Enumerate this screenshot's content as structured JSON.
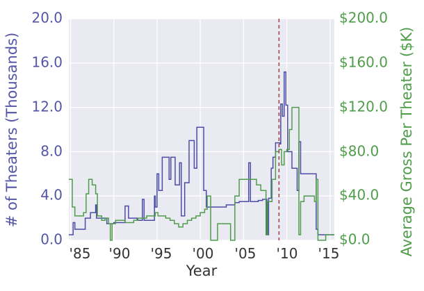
{
  "chart_data": {
    "type": "line",
    "xlabel": "Year",
    "ylabel_left": "# of Theaters (Thousands)",
    "ylabel_right": "Average Gross Per Theater ($K)",
    "xlim": [
      1984.8,
      2015.5
    ],
    "ylim_left": [
      0,
      20
    ],
    "ylim_right": [
      0,
      200
    ],
    "x_ticks": [
      1985,
      1990,
      1995,
      2000,
      2005,
      2010,
      2015
    ],
    "x_tick_labels": [
      "'85",
      "'90",
      "'95",
      "'00",
      "'05",
      "'10",
      "'15"
    ],
    "y_ticks_left": [
      0,
      4,
      8,
      12,
      16,
      20
    ],
    "y_tick_labels_left": [
      "0.0",
      "4.0",
      "8.0",
      "12.0",
      "16.0",
      "20.0"
    ],
    "y_ticks_right": [
      0,
      40,
      80,
      120,
      160,
      200
    ],
    "y_tick_labels_right": [
      "$0.0",
      "$40.0",
      "$80.0",
      "$120.0",
      "$160.0",
      "$200.0"
    ],
    "vline": {
      "x": 2009.1,
      "style": "dashed",
      "color": "#a0464b"
    },
    "series": [
      {
        "name": "# of Theaters (Thousands)",
        "axis": "left",
        "color": "#4c4ca6",
        "points": [
          [
            1984.8,
            0.5
          ],
          [
            1985.3,
            1.6
          ],
          [
            1985.5,
            1.0
          ],
          [
            1986.0,
            1.0
          ],
          [
            1986.5,
            1.0
          ],
          [
            1986.7,
            2.0
          ],
          [
            1987.0,
            2.0
          ],
          [
            1987.3,
            2.5
          ],
          [
            1987.7,
            2.5
          ],
          [
            1987.9,
            3.2
          ],
          [
            1988.0,
            2.0
          ],
          [
            1988.5,
            2.0
          ],
          [
            1988.9,
            2.0
          ],
          [
            1989.2,
            1.5
          ],
          [
            1989.7,
            1.5
          ],
          [
            1990.0,
            1.6
          ],
          [
            1990.5,
            1.6
          ],
          [
            1991.0,
            1.6
          ],
          [
            1991.3,
            3.1
          ],
          [
            1991.7,
            2.0
          ],
          [
            1992.2,
            2.0
          ],
          [
            1992.7,
            1.8
          ],
          [
            1993.1,
            1.8
          ],
          [
            1993.3,
            3.7
          ],
          [
            1993.5,
            1.8
          ],
          [
            1994.0,
            1.8
          ],
          [
            1994.5,
            1.8
          ],
          [
            1994.7,
            4.0
          ],
          [
            1994.8,
            3.0
          ],
          [
            1995.0,
            6.0
          ],
          [
            1995.2,
            4.5
          ],
          [
            1995.6,
            7.5
          ],
          [
            1996.2,
            7.5
          ],
          [
            1996.4,
            5.5
          ],
          [
            1996.6,
            7.5
          ],
          [
            1997.0,
            7.5
          ],
          [
            1997.1,
            5.0
          ],
          [
            1997.6,
            7.0
          ],
          [
            1997.8,
            2.2
          ],
          [
            1998.2,
            5.2
          ],
          [
            1998.5,
            5.2
          ],
          [
            1998.7,
            9.0
          ],
          [
            1999.0,
            9.0
          ],
          [
            1999.3,
            6.5
          ],
          [
            1999.6,
            10.2
          ],
          [
            2000.1,
            10.2
          ],
          [
            2000.4,
            4.5
          ],
          [
            2000.7,
            3.0
          ],
          [
            2001.2,
            3.0
          ],
          [
            2001.7,
            3.0
          ],
          [
            2002.3,
            3.0
          ],
          [
            2003.0,
            3.2
          ],
          [
            2003.5,
            3.2
          ],
          [
            2004.0,
            3.4
          ],
          [
            2004.5,
            3.5
          ],
          [
            2005.0,
            3.5
          ],
          [
            2005.4,
            3.5
          ],
          [
            2005.6,
            7.0
          ],
          [
            2005.8,
            3.5
          ],
          [
            2006.2,
            3.5
          ],
          [
            2006.7,
            3.6
          ],
          [
            2007.2,
            3.7
          ],
          [
            2007.5,
            3.7
          ],
          [
            2007.7,
            0.5
          ],
          [
            2007.9,
            3.8
          ],
          [
            2008.2,
            6.5
          ],
          [
            2008.4,
            7.5
          ],
          [
            2008.7,
            8.8
          ],
          [
            2009.2,
            8.7
          ],
          [
            2009.3,
            12.3
          ],
          [
            2009.5,
            11.2
          ],
          [
            2009.7,
            15.2
          ],
          [
            2009.9,
            12.2
          ],
          [
            2010.1,
            8.0
          ],
          [
            2010.5,
            8.0
          ],
          [
            2010.6,
            6.5
          ],
          [
            2011.0,
            6.5
          ],
          [
            2011.2,
            4.5
          ],
          [
            2011.4,
            8.9
          ],
          [
            2011.6,
            6.0
          ],
          [
            2012.0,
            6.0
          ],
          [
            2012.8,
            6.0
          ],
          [
            2013.2,
            6.0
          ],
          [
            2013.4,
            1.0
          ],
          [
            2013.6,
            0.5
          ],
          [
            2014.5,
            0.5
          ],
          [
            2015.5,
            0.5
          ]
        ]
      },
      {
        "name": "Average Gross Per Theater ($K)",
        "axis": "right",
        "color": "#4f9d4a",
        "points": [
          [
            1984.8,
            55
          ],
          [
            1985.2,
            30
          ],
          [
            1985.5,
            22
          ],
          [
            1986.0,
            22
          ],
          [
            1986.5,
            25
          ],
          [
            1986.8,
            42
          ],
          [
            1987.1,
            55
          ],
          [
            1987.5,
            50
          ],
          [
            1987.9,
            42
          ],
          [
            1988.1,
            22
          ],
          [
            1988.6,
            18
          ],
          [
            1989.0,
            20
          ],
          [
            1989.4,
            15
          ],
          [
            1989.6,
            0
          ],
          [
            1989.8,
            15
          ],
          [
            1990.2,
            18
          ],
          [
            1990.8,
            18
          ],
          [
            1991.3,
            16
          ],
          [
            1991.8,
            16
          ],
          [
            1992.3,
            18
          ],
          [
            1992.8,
            20
          ],
          [
            1993.3,
            20
          ],
          [
            1993.8,
            22
          ],
          [
            1994.3,
            22
          ],
          [
            1994.8,
            25
          ],
          [
            1995.1,
            22
          ],
          [
            1995.5,
            22
          ],
          [
            1996.0,
            20
          ],
          [
            1996.5,
            18
          ],
          [
            1997.0,
            15
          ],
          [
            1997.5,
            12
          ],
          [
            1998.0,
            15
          ],
          [
            1998.5,
            18
          ],
          [
            1999.0,
            20
          ],
          [
            1999.5,
            22
          ],
          [
            2000.0,
            25
          ],
          [
            2000.5,
            28
          ],
          [
            2000.8,
            40
          ],
          [
            2001.2,
            0
          ],
          [
            2001.6,
            0
          ],
          [
            2002.0,
            15
          ],
          [
            2003.0,
            15
          ],
          [
            2003.5,
            0
          ],
          [
            2004.0,
            40
          ],
          [
            2004.5,
            55
          ],
          [
            2005.0,
            55
          ],
          [
            2006.2,
            55
          ],
          [
            2006.5,
            50
          ],
          [
            2007.0,
            45
          ],
          [
            2007.6,
            5
          ],
          [
            2007.8,
            35
          ],
          [
            2008.3,
            55
          ],
          [
            2008.7,
            80
          ],
          [
            2009.1,
            82
          ],
          [
            2009.4,
            68
          ],
          [
            2009.7,
            80
          ],
          [
            2010.0,
            82
          ],
          [
            2010.3,
            100
          ],
          [
            2010.6,
            120
          ],
          [
            2011.2,
            120
          ],
          [
            2011.4,
            5
          ],
          [
            2011.6,
            35
          ],
          [
            2012.0,
            40
          ],
          [
            2012.5,
            40
          ],
          [
            2013.0,
            40
          ],
          [
            2013.2,
            35
          ],
          [
            2013.4,
            55
          ],
          [
            2013.6,
            0
          ],
          [
            2014.0,
            0
          ],
          [
            2014.5,
            5
          ],
          [
            2015.0,
            5
          ],
          [
            2015.5,
            5
          ]
        ]
      }
    ]
  }
}
